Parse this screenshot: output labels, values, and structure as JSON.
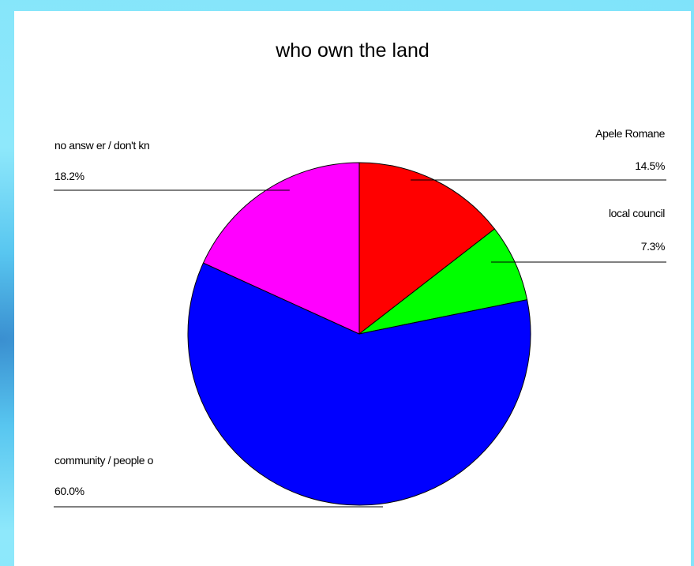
{
  "chart_data": {
    "type": "pie",
    "title": "who own the land",
    "slices": [
      {
        "label": "Apele Romane",
        "value": 14.5,
        "display": "14.5%",
        "color": "#ff0000"
      },
      {
        "label": "local council",
        "value": 7.3,
        "display": "7.3%",
        "color": "#00ff00"
      },
      {
        "label": "community / people o",
        "value": 60.0,
        "display": "60.0%",
        "color": "#0000ff"
      },
      {
        "label": "no answ er / don't kn",
        "value": 18.2,
        "display": "18.2%",
        "color": "#ff00ff"
      }
    ]
  },
  "colors": {
    "background": "#7fe3fa",
    "panel": "#ffffff"
  }
}
